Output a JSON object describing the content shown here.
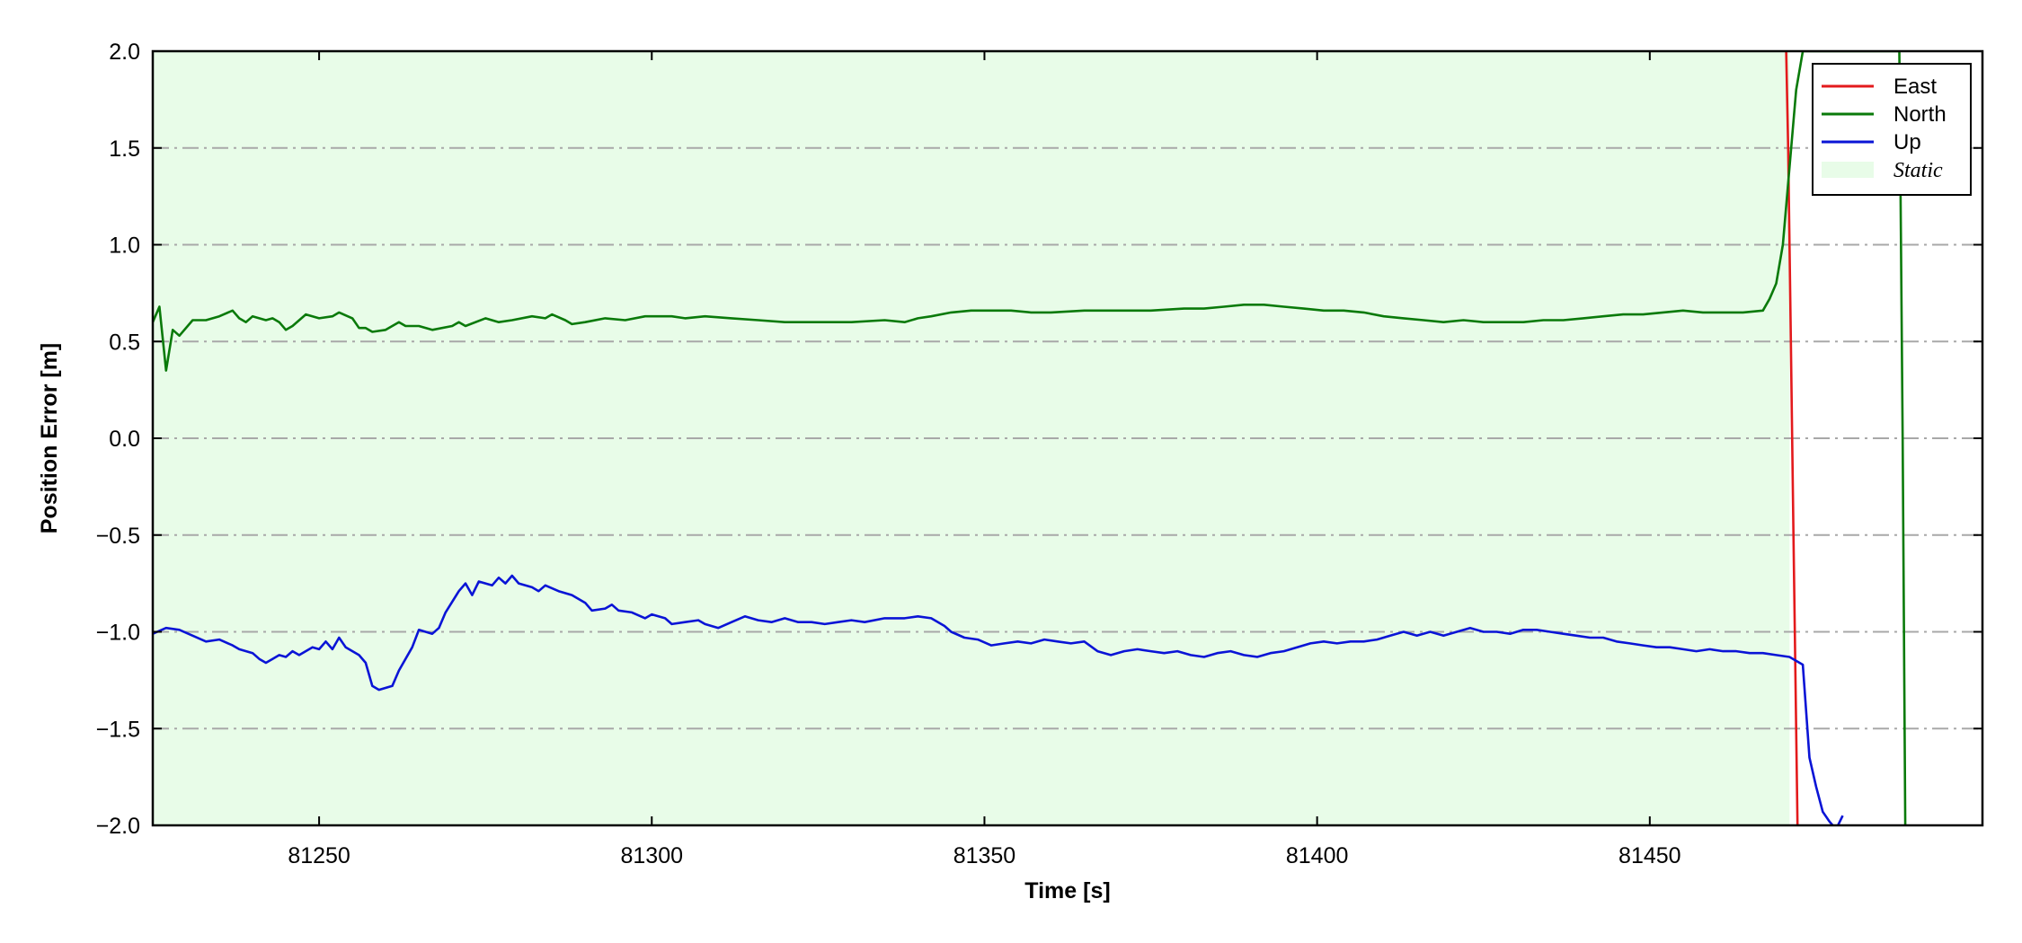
{
  "chart_data": {
    "type": "line",
    "title": "",
    "xlabel": "Time [s]",
    "ylabel": "Position Error [m]",
    "xlim": [
      81225,
      81500
    ],
    "ylim": [
      -2.0,
      2.0
    ],
    "x_ticks": [
      81250,
      81300,
      81350,
      81400,
      81450
    ],
    "x_tick_labels": [
      "81250",
      "81300",
      "81350",
      "81400",
      "81450"
    ],
    "y_ticks": [
      2.0,
      1.5,
      1.0,
      0.5,
      0.0,
      -0.5,
      -1.0,
      -1.5,
      -2.0
    ],
    "y_tick_labels": [
      "2.0",
      "1.5",
      "1.0",
      "0.5",
      "0.0",
      "−0.5",
      "−1.0",
      "−1.5",
      "−2.0"
    ],
    "grid": "horizontal dash-dot",
    "legend_position": "top-right",
    "static_region": {
      "label": "Static",
      "x_start": 81225,
      "x_end": 81471,
      "color": "#e8fce8"
    },
    "series": [
      {
        "name": "East",
        "color": "#e31a1c",
        "points": [
          [
            81470.5,
            2.0
          ],
          [
            81470.8,
            1.5
          ],
          [
            81471.2,
            0.5
          ],
          [
            81471.6,
            -0.5
          ],
          [
            81472.0,
            -1.5
          ],
          [
            81472.2,
            -2.0
          ]
        ]
      },
      {
        "name": "North",
        "color": "#0a7a0a",
        "points": [
          [
            81225,
            0.6
          ],
          [
            81226,
            0.68
          ],
          [
            81227,
            0.35
          ],
          [
            81228,
            0.56
          ],
          [
            81229,
            0.53
          ],
          [
            81231,
            0.61
          ],
          [
            81233,
            0.61
          ],
          [
            81235,
            0.63
          ],
          [
            81237,
            0.66
          ],
          [
            81238,
            0.62
          ],
          [
            81239,
            0.6
          ],
          [
            81240,
            0.63
          ],
          [
            81242,
            0.61
          ],
          [
            81243,
            0.62
          ],
          [
            81244,
            0.6
          ],
          [
            81245,
            0.56
          ],
          [
            81246,
            0.58
          ],
          [
            81248,
            0.64
          ],
          [
            81250,
            0.62
          ],
          [
            81252,
            0.63
          ],
          [
            81253,
            0.65
          ],
          [
            81255,
            0.62
          ],
          [
            81256,
            0.57
          ],
          [
            81257,
            0.57
          ],
          [
            81258,
            0.55
          ],
          [
            81260,
            0.56
          ],
          [
            81262,
            0.6
          ],
          [
            81263,
            0.58
          ],
          [
            81265,
            0.58
          ],
          [
            81267,
            0.56
          ],
          [
            81270,
            0.58
          ],
          [
            81271,
            0.6
          ],
          [
            81272,
            0.58
          ],
          [
            81275,
            0.62
          ],
          [
            81277,
            0.6
          ],
          [
            81279,
            0.61
          ],
          [
            81282,
            0.63
          ],
          [
            81284,
            0.62
          ],
          [
            81285,
            0.64
          ],
          [
            81287,
            0.61
          ],
          [
            81288,
            0.59
          ],
          [
            81290,
            0.6
          ],
          [
            81293,
            0.62
          ],
          [
            81296,
            0.61
          ],
          [
            81299,
            0.63
          ],
          [
            81303,
            0.63
          ],
          [
            81305,
            0.62
          ],
          [
            81308,
            0.63
          ],
          [
            81312,
            0.62
          ],
          [
            81316,
            0.61
          ],
          [
            81320,
            0.6
          ],
          [
            81325,
            0.6
          ],
          [
            81330,
            0.6
          ],
          [
            81335,
            0.61
          ],
          [
            81338,
            0.6
          ],
          [
            81340,
            0.62
          ],
          [
            81342,
            0.63
          ],
          [
            81345,
            0.65
          ],
          [
            81348,
            0.66
          ],
          [
            81351,
            0.66
          ],
          [
            81354,
            0.66
          ],
          [
            81357,
            0.65
          ],
          [
            81360,
            0.65
          ],
          [
            81365,
            0.66
          ],
          [
            81370,
            0.66
          ],
          [
            81375,
            0.66
          ],
          [
            81380,
            0.67
          ],
          [
            81383,
            0.67
          ],
          [
            81386,
            0.68
          ],
          [
            81389,
            0.69
          ],
          [
            81392,
            0.69
          ],
          [
            81395,
            0.68
          ],
          [
            81398,
            0.67
          ],
          [
            81401,
            0.66
          ],
          [
            81404,
            0.66
          ],
          [
            81407,
            0.65
          ],
          [
            81410,
            0.63
          ],
          [
            81413,
            0.62
          ],
          [
            81416,
            0.61
          ],
          [
            81419,
            0.6
          ],
          [
            81422,
            0.61
          ],
          [
            81425,
            0.6
          ],
          [
            81428,
            0.6
          ],
          [
            81431,
            0.6
          ],
          [
            81434,
            0.61
          ],
          [
            81437,
            0.61
          ],
          [
            81440,
            0.62
          ],
          [
            81443,
            0.63
          ],
          [
            81446,
            0.64
          ],
          [
            81449,
            0.64
          ],
          [
            81452,
            0.65
          ],
          [
            81455,
            0.66
          ],
          [
            81458,
            0.65
          ],
          [
            81461,
            0.65
          ],
          [
            81464,
            0.65
          ],
          [
            81467,
            0.66
          ],
          [
            81468,
            0.72
          ],
          [
            81469,
            0.8
          ],
          [
            81470,
            1.0
          ],
          [
            81471,
            1.4
          ],
          [
            81472,
            1.8
          ],
          [
            81473,
            2.0
          ],
          [
            81487.5,
            2.0
          ],
          [
            81488,
            0.0
          ],
          [
            81488.4,
            -2.0
          ]
        ]
      },
      {
        "name": "Up",
        "color": "#0a14d6",
        "points": [
          [
            81225,
            -1.01
          ],
          [
            81227,
            -0.98
          ],
          [
            81229,
            -0.99
          ],
          [
            81231,
            -1.02
          ],
          [
            81233,
            -1.05
          ],
          [
            81235,
            -1.04
          ],
          [
            81237,
            -1.07
          ],
          [
            81238,
            -1.09
          ],
          [
            81240,
            -1.11
          ],
          [
            81241,
            -1.14
          ],
          [
            81242,
            -1.16
          ],
          [
            81243,
            -1.14
          ],
          [
            81244,
            -1.12
          ],
          [
            81245,
            -1.13
          ],
          [
            81246,
            -1.1
          ],
          [
            81247,
            -1.12
          ],
          [
            81249,
            -1.08
          ],
          [
            81250,
            -1.09
          ],
          [
            81251,
            -1.05
          ],
          [
            81252,
            -1.09
          ],
          [
            81253,
            -1.03
          ],
          [
            81254,
            -1.08
          ],
          [
            81256,
            -1.12
          ],
          [
            81257,
            -1.16
          ],
          [
            81258,
            -1.28
          ],
          [
            81259,
            -1.3
          ],
          [
            81261,
            -1.28
          ],
          [
            81262,
            -1.2
          ],
          [
            81264,
            -1.08
          ],
          [
            81265,
            -0.99
          ],
          [
            81267,
            -1.01
          ],
          [
            81268,
            -0.98
          ],
          [
            81269,
            -0.9
          ],
          [
            81271,
            -0.79
          ],
          [
            81272,
            -0.75
          ],
          [
            81273,
            -0.81
          ],
          [
            81274,
            -0.74
          ],
          [
            81276,
            -0.76
          ],
          [
            81277,
            -0.72
          ],
          [
            81278,
            -0.75
          ],
          [
            81279,
            -0.71
          ],
          [
            81280,
            -0.75
          ],
          [
            81282,
            -0.77
          ],
          [
            81283,
            -0.79
          ],
          [
            81284,
            -0.76
          ],
          [
            81286,
            -0.79
          ],
          [
            81288,
            -0.81
          ],
          [
            81290,
            -0.85
          ],
          [
            81291,
            -0.89
          ],
          [
            81293,
            -0.88
          ],
          [
            81294,
            -0.86
          ],
          [
            81295,
            -0.89
          ],
          [
            81297,
            -0.9
          ],
          [
            81299,
            -0.93
          ],
          [
            81300,
            -0.91
          ],
          [
            81302,
            -0.93
          ],
          [
            81303,
            -0.96
          ],
          [
            81305,
            -0.95
          ],
          [
            81307,
            -0.94
          ],
          [
            81308,
            -0.96
          ],
          [
            81310,
            -0.98
          ],
          [
            81312,
            -0.95
          ],
          [
            81314,
            -0.92
          ],
          [
            81316,
            -0.94
          ],
          [
            81318,
            -0.95
          ],
          [
            81320,
            -0.93
          ],
          [
            81322,
            -0.95
          ],
          [
            81324,
            -0.95
          ],
          [
            81326,
            -0.96
          ],
          [
            81328,
            -0.95
          ],
          [
            81330,
            -0.94
          ],
          [
            81332,
            -0.95
          ],
          [
            81335,
            -0.93
          ],
          [
            81338,
            -0.93
          ],
          [
            81340,
            -0.92
          ],
          [
            81342,
            -0.93
          ],
          [
            81344,
            -0.97
          ],
          [
            81345,
            -1.0
          ],
          [
            81347,
            -1.03
          ],
          [
            81349,
            -1.04
          ],
          [
            81351,
            -1.07
          ],
          [
            81353,
            -1.06
          ],
          [
            81355,
            -1.05
          ],
          [
            81357,
            -1.06
          ],
          [
            81359,
            -1.04
          ],
          [
            81361,
            -1.05
          ],
          [
            81363,
            -1.06
          ],
          [
            81365,
            -1.05
          ],
          [
            81367,
            -1.1
          ],
          [
            81369,
            -1.12
          ],
          [
            81371,
            -1.1
          ],
          [
            81373,
            -1.09
          ],
          [
            81375,
            -1.1
          ],
          [
            81377,
            -1.11
          ],
          [
            81379,
            -1.1
          ],
          [
            81381,
            -1.12
          ],
          [
            81383,
            -1.13
          ],
          [
            81385,
            -1.11
          ],
          [
            81387,
            -1.1
          ],
          [
            81389,
            -1.12
          ],
          [
            81391,
            -1.13
          ],
          [
            81393,
            -1.11
          ],
          [
            81395,
            -1.1
          ],
          [
            81397,
            -1.08
          ],
          [
            81399,
            -1.06
          ],
          [
            81401,
            -1.05
          ],
          [
            81403,
            -1.06
          ],
          [
            81405,
            -1.05
          ],
          [
            81407,
            -1.05
          ],
          [
            81409,
            -1.04
          ],
          [
            81411,
            -1.02
          ],
          [
            81413,
            -1.0
          ],
          [
            81415,
            -1.02
          ],
          [
            81417,
            -1.0
          ],
          [
            81419,
            -1.02
          ],
          [
            81421,
            -1.0
          ],
          [
            81423,
            -0.98
          ],
          [
            81425,
            -1.0
          ],
          [
            81427,
            -1.0
          ],
          [
            81429,
            -1.01
          ],
          [
            81431,
            -0.99
          ],
          [
            81433,
            -0.99
          ],
          [
            81435,
            -1.0
          ],
          [
            81437,
            -1.01
          ],
          [
            81439,
            -1.02
          ],
          [
            81441,
            -1.03
          ],
          [
            81443,
            -1.03
          ],
          [
            81445,
            -1.05
          ],
          [
            81447,
            -1.06
          ],
          [
            81449,
            -1.07
          ],
          [
            81451,
            -1.08
          ],
          [
            81453,
            -1.08
          ],
          [
            81455,
            -1.09
          ],
          [
            81457,
            -1.1
          ],
          [
            81459,
            -1.09
          ],
          [
            81461,
            -1.1
          ],
          [
            81463,
            -1.1
          ],
          [
            81465,
            -1.11
          ],
          [
            81467,
            -1.11
          ],
          [
            81469,
            -1.12
          ],
          [
            81471,
            -1.13
          ],
          [
            81473,
            -1.17
          ],
          [
            81474,
            -1.65
          ],
          [
            81475,
            -1.8
          ],
          [
            81476,
            -1.93
          ],
          [
            81477,
            -1.98
          ],
          [
            81478,
            -2.02
          ],
          [
            81479,
            -1.95
          ]
        ]
      }
    ]
  }
}
